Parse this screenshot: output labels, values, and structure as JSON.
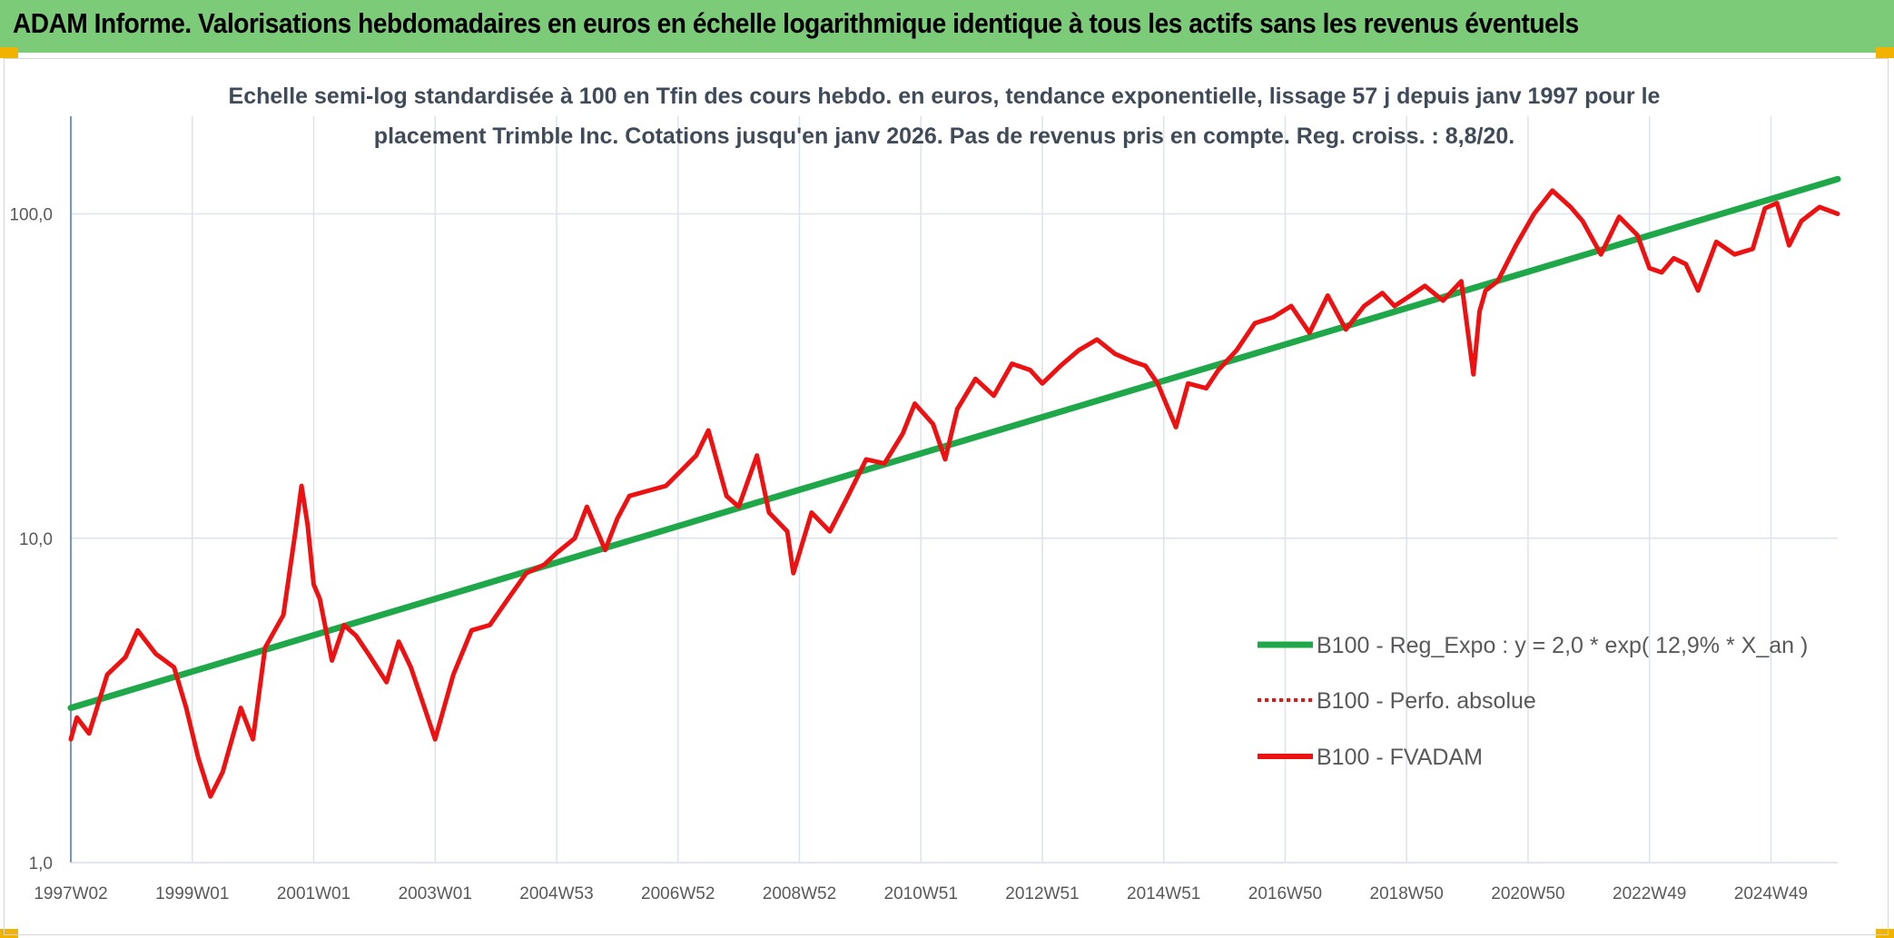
{
  "header": {
    "title": "ADAM Informe. Valorisations hebdomadaires en euros en échelle logarithmique identique à tous les actifs sans les revenus éventuels"
  },
  "colors": {
    "header_bg": "#7ccb79",
    "corner_accent": "#f2b200",
    "trend": "#1fa84a",
    "fvadam": "#ee1111",
    "perfo": "#ee1111",
    "grid": "#dde3ea",
    "axis": "#4a72b5"
  },
  "chart_data": {
    "type": "line",
    "y_scale": "log",
    "title_lines": [
      "Echelle semi-log standardisée à 100 en Tfin des cours hebdo. en euros, tendance exponentielle, lissage 57 j depuis janv 1997 pour le",
      "placement Trimble Inc. Cotations jusqu'en janv 2026. Pas de revenus pris en compte. Reg. croiss. : 8,8/20."
    ],
    "xlim": [
      1997.0,
      2026.1
    ],
    "ylim": [
      1,
      200
    ],
    "y_ticks": [
      {
        "value": 1,
        "label": "1,0"
      },
      {
        "value": 10,
        "label": "10,0"
      },
      {
        "value": 100,
        "label": "100,0"
      }
    ],
    "x_ticks": [
      {
        "value": 1997.0,
        "label": "1997W02"
      },
      {
        "value": 1999.0,
        "label": "1999W01"
      },
      {
        "value": 2001.0,
        "label": "2001W01"
      },
      {
        "value": 2003.0,
        "label": "2003W01"
      },
      {
        "value": 2005.0,
        "label": "2004W53"
      },
      {
        "value": 2007.0,
        "label": "2006W52"
      },
      {
        "value": 2009.0,
        "label": "2008W52"
      },
      {
        "value": 2011.0,
        "label": "2010W51"
      },
      {
        "value": 2013.0,
        "label": "2012W51"
      },
      {
        "value": 2015.0,
        "label": "2014W51"
      },
      {
        "value": 2017.0,
        "label": "2016W50"
      },
      {
        "value": 2019.0,
        "label": "2018W50"
      },
      {
        "value": 2021.0,
        "label": "2020W50"
      },
      {
        "value": 2023.0,
        "label": "2022W49"
      },
      {
        "value": 2025.0,
        "label": "2024W49"
      }
    ],
    "legend": [
      {
        "key": "trend",
        "label": "B100 - Reg_Expo : y = 2,0 * exp( 12,9% *  X_an )",
        "style": "solid"
      },
      {
        "key": "perfo",
        "label": "B100 - Perfo. absolue",
        "style": "dotted"
      },
      {
        "key": "fvadam",
        "label": "B100 - FVADAM",
        "style": "solid"
      }
    ],
    "series": [
      {
        "name": "B100 - Reg_Expo",
        "key": "trend",
        "x": [
          1997.0,
          2026.1
        ],
        "y": [
          3.0,
          128
        ]
      },
      {
        "name": "B100 - FVADAM",
        "key": "fvadam",
        "x": [
          1997.0,
          1997.1,
          1997.3,
          1997.6,
          1997.9,
          1998.1,
          1998.4,
          1998.7,
          1998.9,
          1999.1,
          1999.3,
          1999.5,
          1999.8,
          2000.0,
          2000.2,
          2000.5,
          2000.7,
          2000.8,
          2000.9,
          2001.0,
          2001.1,
          2001.3,
          2001.5,
          2001.7,
          2001.9,
          2002.2,
          2002.4,
          2002.6,
          2002.8,
          2003.0,
          2003.3,
          2003.6,
          2003.9,
          2004.2,
          2004.5,
          2004.8,
          2005.0,
          2005.3,
          2005.5,
          2005.8,
          2006.0,
          2006.2,
          2006.5,
          2006.8,
          2007.1,
          2007.3,
          2007.5,
          2007.8,
          2008.0,
          2008.3,
          2008.5,
          2008.8,
          2008.9,
          2009.2,
          2009.5,
          2009.8,
          2010.1,
          2010.4,
          2010.7,
          2010.9,
          2011.2,
          2011.4,
          2011.6,
          2011.9,
          2012.2,
          2012.5,
          2012.8,
          2013.0,
          2013.3,
          2013.6,
          2013.9,
          2014.2,
          2014.5,
          2014.7,
          2014.9,
          2015.2,
          2015.4,
          2015.7,
          2015.9,
          2016.2,
          2016.5,
          2016.8,
          2017.1,
          2017.4,
          2017.7,
          2018.0,
          2018.3,
          2018.6,
          2018.8,
          2019.0,
          2019.3,
          2019.6,
          2019.9,
          2020.1,
          2020.2,
          2020.3,
          2020.5,
          2020.8,
          2021.1,
          2021.4,
          2021.7,
          2021.9,
          2022.2,
          2022.5,
          2022.8,
          2023.0,
          2023.2,
          2023.4,
          2023.6,
          2023.8,
          2024.1,
          2024.4,
          2024.7,
          2024.9,
          2025.1,
          2025.3,
          2025.5,
          2025.8,
          2026.1
        ],
        "y": [
          2.4,
          2.8,
          2.5,
          3.8,
          4.3,
          5.2,
          4.4,
          4.0,
          3.0,
          2.1,
          1.6,
          1.9,
          3.0,
          2.4,
          4.6,
          5.8,
          10.5,
          14.5,
          11.0,
          7.2,
          6.5,
          4.2,
          5.4,
          5.0,
          4.4,
          3.6,
          4.8,
          4.0,
          3.1,
          2.4,
          3.8,
          5.2,
          5.4,
          6.5,
          7.8,
          8.3,
          9.0,
          10.0,
          12.5,
          9.2,
          11.5,
          13.5,
          14.0,
          14.5,
          16.5,
          18.0,
          21.5,
          13.5,
          12.5,
          18.0,
          12.0,
          10.5,
          7.8,
          12.0,
          10.5,
          13.5,
          17.5,
          17.0,
          21.0,
          26.0,
          22.5,
          17.5,
          25.0,
          31.0,
          27.5,
          34.5,
          33.0,
          30.0,
          34.0,
          38.0,
          41.0,
          37.0,
          35.0,
          34.0,
          30.0,
          22.0,
          30.0,
          29.0,
          33.0,
          38.0,
          46.0,
          48.0,
          52.0,
          43.0,
          56.0,
          44.0,
          52.0,
          57.0,
          52.0,
          55.0,
          60.0,
          54.0,
          62.0,
          32.0,
          50.0,
          58.0,
          62.0,
          80.0,
          100.0,
          118.0,
          105.0,
          95.0,
          75.0,
          98.0,
          86.0,
          68.0,
          66.0,
          73.0,
          70.0,
          58.0,
          82.0,
          75.0,
          78.0,
          104.0,
          108.0,
          80.0,
          95.0,
          105.0,
          100.0
        ]
      }
    ]
  }
}
